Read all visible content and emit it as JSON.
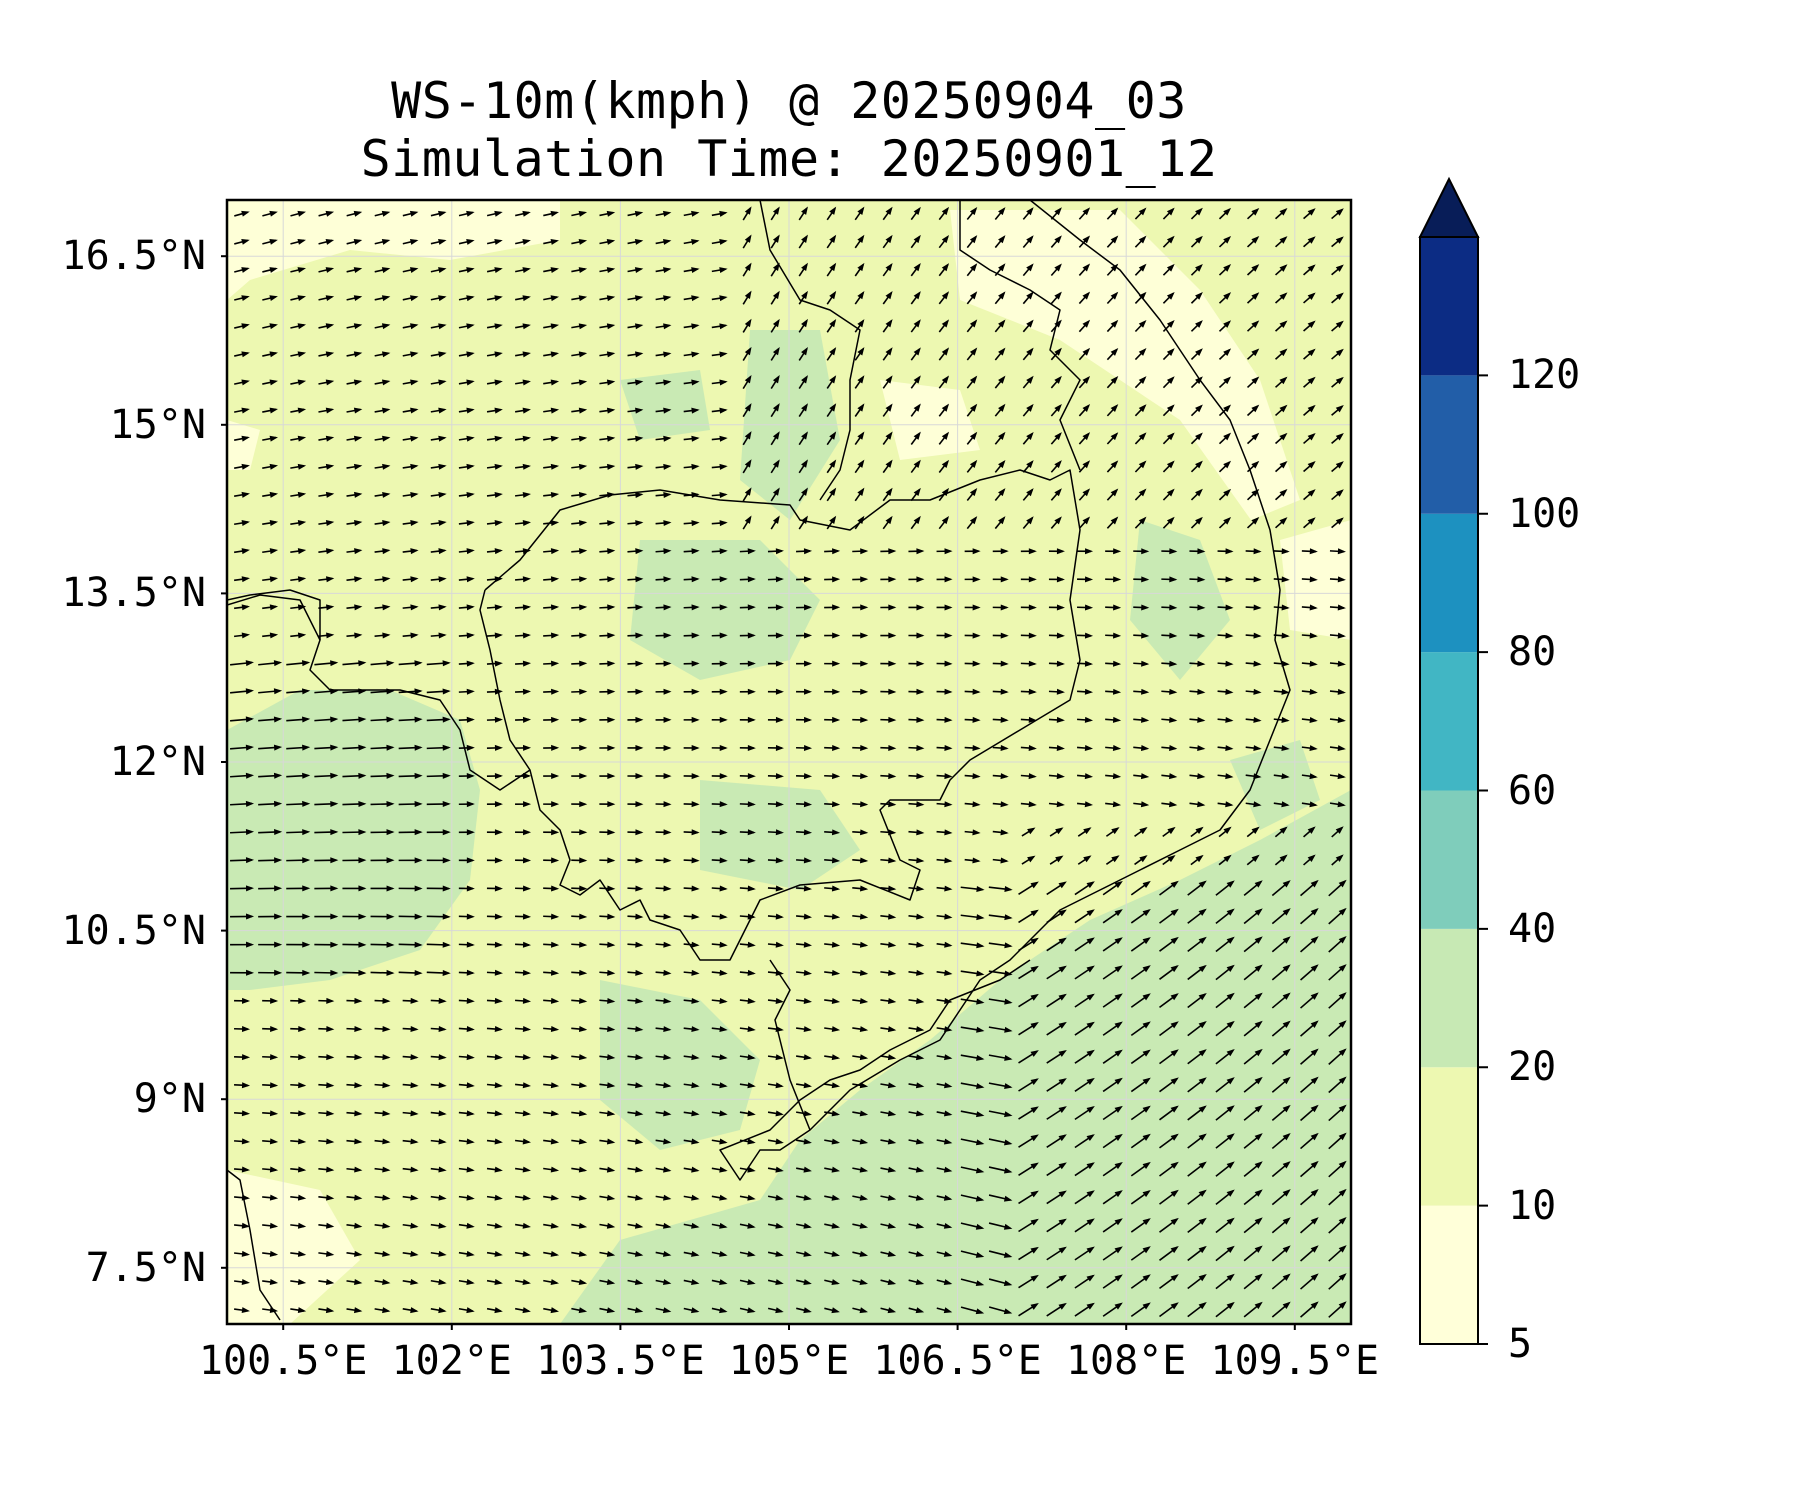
{
  "title": {
    "line1": "WS-10m(kmph) @ 20250904_03",
    "line2": "Simulation Time: 20250901_12"
  },
  "map": {
    "lon_range": [
      100.0,
      110.0
    ],
    "lat_range": [
      7.0,
      17.0
    ],
    "y_ticks": [
      {
        "lat": 16.5,
        "label": "16.5°N"
      },
      {
        "lat": 15.0,
        "label": "15°N"
      },
      {
        "lat": 13.5,
        "label": "13.5°N"
      },
      {
        "lat": 12.0,
        "label": "12°N"
      },
      {
        "lat": 10.5,
        "label": "10.5°N"
      },
      {
        "lat": 9.0,
        "label": "9°N"
      },
      {
        "lat": 7.5,
        "label": "7.5°N"
      }
    ],
    "x_ticks": [
      {
        "lon": 100.5,
        "label": "100.5°E"
      },
      {
        "lon": 102.0,
        "label": "102°E"
      },
      {
        "lon": 103.5,
        "label": "103.5°E"
      },
      {
        "lon": 105.0,
        "label": "105°E"
      },
      {
        "lon": 106.5,
        "label": "106.5°E"
      },
      {
        "lon": 108.0,
        "label": "108°E"
      },
      {
        "lon": 109.5,
        "label": "109.5°E"
      }
    ],
    "gridlines": true,
    "wind_vectors": "quiver field, westerly to southwesterly flow"
  },
  "colorbar": {
    "levels": [
      5,
      10,
      20,
      40,
      60,
      80,
      100,
      120
    ],
    "labels": [
      "5",
      "10",
      "20",
      "40",
      "60",
      "80",
      "100",
      "120"
    ],
    "colors": [
      "#ffffd9",
      "#edf8b1",
      "#c7e9b4",
      "#7fcdbb",
      "#41b6c4",
      "#1d91c0",
      "#225ea8",
      "#0c2c84"
    ],
    "extend": "max",
    "extend_color": "#081d58"
  },
  "colors": {
    "land_outline": "#000000",
    "arrow": "#000000",
    "low_wind": "#ffffd9",
    "mid_wind": "#edf8b1",
    "high_wind": "#c7e9b4"
  }
}
